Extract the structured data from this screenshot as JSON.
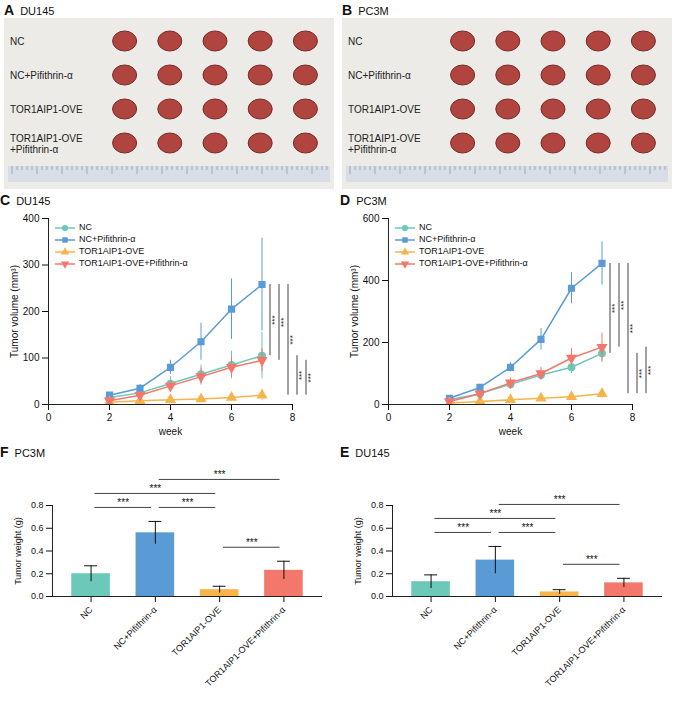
{
  "photo_panels": [
    {
      "panel": "A",
      "title": "DU145",
      "rows": [
        "NC",
        "NC+Pifithrin-α",
        "TOR1AIP1-OVE",
        "TOR1AIP1-OVE +Pifithrin-α"
      ]
    },
    {
      "panel": "B",
      "title": "PC3M",
      "rows": [
        "NC",
        "NC+Pifithrin-α",
        "TOR1AIP1-OVE",
        "TOR1AIP1-OVE +Pifithrin-α"
      ]
    }
  ],
  "chart_data": [
    {
      "panel": "C",
      "type": "line",
      "title": "DU145",
      "x_label": "week",
      "y_label": "Tumor volume (mm³)",
      "x": [
        2,
        3,
        4,
        5,
        6,
        7
      ],
      "xlim": [
        0,
        8
      ],
      "xticks": [
        0,
        2,
        4,
        6,
        8
      ],
      "ylim": [
        0,
        400
      ],
      "yticks": [
        0,
        100,
        200,
        300,
        400
      ],
      "legend": "upper left",
      "series": [
        {
          "name": "NC",
          "color": "#6cc8b8",
          "marker": "circle",
          "values": [
            15,
            25,
            45,
            65,
            85,
            105
          ],
          "errors": [
            5,
            8,
            15,
            20,
            30,
            50
          ]
        },
        {
          "name": "NC+Pifithrin-α",
          "color": "#5b9bd5",
          "marker": "square",
          "values": [
            20,
            35,
            80,
            135,
            205,
            258
          ],
          "errors": [
            5,
            8,
            15,
            40,
            65,
            100
          ]
        },
        {
          "name": "TOR1AIP1-OVE",
          "color": "#f7b44a",
          "marker": "triangle",
          "values": [
            5,
            8,
            10,
            12,
            15,
            20
          ],
          "errors": [
            3,
            4,
            5,
            6,
            8,
            12
          ]
        },
        {
          "name": "TOR1AIP1-OVE+Pifithrin-α",
          "color": "#f4776b",
          "marker": "triangle-down",
          "values": [
            8,
            20,
            40,
            60,
            80,
            95
          ],
          "errors": [
            4,
            8,
            12,
            18,
            22,
            25
          ]
        }
      ],
      "significance": [
        {
          "between": [
            "NC+Pifithrin-α",
            "NC"
          ],
          "label": "***"
        },
        {
          "between": [
            "NC+Pifithrin-α",
            "TOR1AIP1-OVE+Pifithrin-α"
          ],
          "label": "***"
        },
        {
          "between": [
            "NC+Pifithrin-α",
            "TOR1AIP1-OVE"
          ],
          "label": "***"
        },
        {
          "between": [
            "NC",
            "TOR1AIP1-OVE"
          ],
          "label": "***"
        },
        {
          "between": [
            "TOR1AIP1-OVE+Pifithrin-α",
            "TOR1AIP1-OVE"
          ],
          "label": "***"
        }
      ]
    },
    {
      "panel": "D",
      "type": "line",
      "title": "PC3M",
      "x_label": "week",
      "y_label": "Tumor volume (mm³)",
      "x": [
        2,
        3,
        4,
        5,
        6,
        7
      ],
      "xlim": [
        0,
        8
      ],
      "xticks": [
        0,
        2,
        4,
        6,
        8
      ],
      "ylim": [
        0,
        600
      ],
      "yticks": [
        0,
        200,
        400,
        600
      ],
      "legend": "upper left",
      "series": [
        {
          "name": "NC",
          "color": "#6cc8b8",
          "marker": "circle",
          "values": [
            15,
            35,
            65,
            95,
            120,
            165
          ],
          "errors": [
            5,
            10,
            12,
            15,
            20,
            30
          ]
        },
        {
          "name": "NC+Pifithrin-α",
          "color": "#5b9bd5",
          "marker": "square",
          "values": [
            20,
            55,
            120,
            210,
            375,
            455
          ],
          "errors": [
            5,
            10,
            15,
            35,
            50,
            70
          ]
        },
        {
          "name": "TOR1AIP1-OVE",
          "color": "#f7b44a",
          "marker": "triangle",
          "values": [
            5,
            10,
            15,
            20,
            25,
            35
          ],
          "errors": [
            3,
            5,
            6,
            8,
            10,
            15
          ]
        },
        {
          "name": "TOR1AIP1-OVE+Pifithrin-α",
          "color": "#f4776b",
          "marker": "triangle-down",
          "values": [
            10,
            35,
            70,
            100,
            150,
            185
          ],
          "errors": [
            5,
            10,
            15,
            20,
            30,
            45
          ]
        }
      ],
      "significance": [
        {
          "between": [
            "NC+Pifithrin-α",
            "NC"
          ],
          "label": "***"
        },
        {
          "between": [
            "NC+Pifithrin-α",
            "TOR1AIP1-OVE+Pifithrin-α"
          ],
          "label": "***"
        },
        {
          "between": [
            "NC+Pifithrin-α",
            "TOR1AIP1-OVE"
          ],
          "label": "***"
        },
        {
          "between": [
            "NC",
            "TOR1AIP1-OVE"
          ],
          "label": "***"
        },
        {
          "between": [
            "TOR1AIP1-OVE+Pifithrin-α",
            "TOR1AIP1-OVE"
          ],
          "label": "***"
        }
      ]
    },
    {
      "panel": "E",
      "type": "bar",
      "title": "DU145",
      "y_label": "Tumor weight (g)",
      "categories": [
        "NC",
        "NC+Pifithrin-α",
        "TOR1AIP1-OVE",
        "TOR1AIP1-OVE+Pifithrin-α"
      ],
      "values": [
        0.13,
        0.32,
        0.04,
        0.12
      ],
      "errors": [
        0.06,
        0.12,
        0.02,
        0.04
      ],
      "colors": [
        "#6cc8b8",
        "#5b9bd5",
        "#f7b44a",
        "#f4776b"
      ],
      "ylim": [
        0,
        0.8
      ],
      "yticks": [
        {
          "value": 0,
          "label": "0.0"
        },
        0.2,
        0.4,
        0.6,
        0.8
      ],
      "significance": [
        {
          "between": [
            "NC",
            "NC+Pifithrin-α"
          ],
          "label": "***"
        },
        {
          "between": [
            "NC+Pifithrin-α",
            "TOR1AIP1-OVE"
          ],
          "label": "***"
        },
        {
          "between": [
            "NC",
            "TOR1AIP1-OVE"
          ],
          "label": "***"
        },
        {
          "between": [
            "NC+Pifithrin-α",
            "TOR1AIP1-OVE+Pifithrin-α"
          ],
          "label": "***"
        },
        {
          "between": [
            "TOR1AIP1-OVE",
            "TOR1AIP1-OVE+Pifithrin-α"
          ],
          "label": "***"
        }
      ]
    },
    {
      "panel": "F",
      "type": "bar",
      "title": "PC3M",
      "y_label": "Tumor weight (g)",
      "categories": [
        "NC",
        "NC+Pifithrin-α",
        "TOR1AIP1-OVE",
        "TOR1AIP1-OVE+Pifithrin-α"
      ],
      "values": [
        0.2,
        0.56,
        0.06,
        0.23
      ],
      "errors": [
        0.07,
        0.1,
        0.03,
        0.08
      ],
      "colors": [
        "#6cc8b8",
        "#5b9bd5",
        "#f7b44a",
        "#f4776b"
      ],
      "ylim": [
        0,
        0.8
      ],
      "yticks": [
        {
          "value": 0,
          "label": "0.0"
        },
        0.2,
        0.4,
        0.6,
        0.8
      ],
      "significance": [
        {
          "between": [
            "NC",
            "NC+Pifithrin-α"
          ],
          "label": "***"
        },
        {
          "between": [
            "NC+Pifithrin-α",
            "TOR1AIP1-OVE"
          ],
          "label": "***"
        },
        {
          "between": [
            "NC",
            "TOR1AIP1-OVE"
          ],
          "label": "***"
        },
        {
          "between": [
            "NC+Pifithrin-α",
            "TOR1AIP1-OVE+Pifithrin-α"
          ],
          "label": "***"
        },
        {
          "between": [
            "TOR1AIP1-OVE",
            "TOR1AIP1-OVE+Pifithrin-α"
          ],
          "label": "***"
        }
      ]
    }
  ]
}
